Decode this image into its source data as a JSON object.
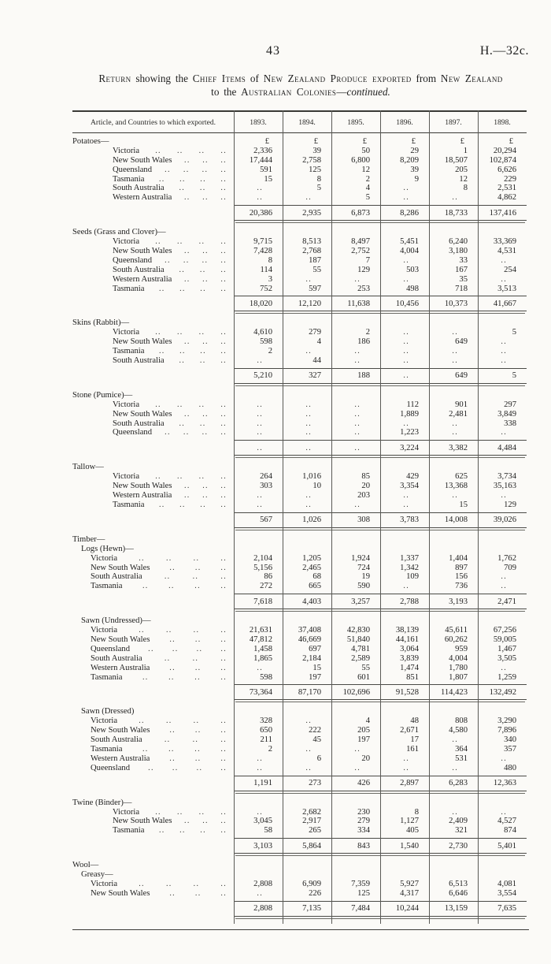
{
  "page": {
    "page_number": "43",
    "doc_ref": "H.—32c.",
    "title_line1": [
      {
        "text": "Return",
        "style": "sc"
      },
      {
        "text": " showing the ",
        "style": "plain"
      },
      {
        "text": "Chief Items",
        "style": "sc"
      },
      {
        "text": " of ",
        "style": "plain"
      },
      {
        "text": "New Zealand Produce exported",
        "style": "sc"
      },
      {
        "text": " from ",
        "style": "plain"
      },
      {
        "text": "New Zealand",
        "style": "sc"
      }
    ],
    "title_line2": [
      {
        "text": "to the ",
        "style": "plain"
      },
      {
        "text": "Australian Colonies",
        "style": "sc"
      },
      {
        "text": "—",
        "style": "plain"
      },
      {
        "text": "continued.",
        "style": "italic"
      }
    ]
  },
  "table": {
    "header_label": "Article, and Countries to which exported.",
    "years": [
      "1893.",
      "1894.",
      "1895.",
      "1896.",
      "1897.",
      "1898."
    ],
    "currency_symbol": "£",
    "empty_marker": "..",
    "sections": [
      {
        "title": "Potatoes—",
        "show_currency": true,
        "rows": [
          {
            "label": "Victoria",
            "values": [
              "2,336",
              "39",
              "50",
              "29",
              "1",
              "20,294"
            ]
          },
          {
            "label": "New South Wales",
            "values": [
              "17,444",
              "2,758",
              "6,800",
              "8,209",
              "18,507",
              "102,874"
            ]
          },
          {
            "label": "Queensland",
            "values": [
              "591",
              "125",
              "12",
              "39",
              "205",
              "6,626"
            ]
          },
          {
            "label": "Tasmania",
            "values": [
              "15",
              "8",
              "2",
              "9",
              "12",
              "229"
            ]
          },
          {
            "label": "South Australia",
            "values": [
              "..",
              "5",
              "4",
              "..",
              "8",
              "2,531"
            ]
          },
          {
            "label": "Western Australia",
            "values": [
              "..",
              "..",
              "5",
              "..",
              "..",
              "4,862"
            ]
          }
        ],
        "total": [
          "20,386",
          "2,935",
          "6,873",
          "8,286",
          "18,733",
          "137,416"
        ]
      },
      {
        "title": "Seeds (Grass and Clover)—",
        "rows": [
          {
            "label": "Victoria",
            "values": [
              "9,715",
              "8,513",
              "8,497",
              "5,451",
              "6,240",
              "33,369"
            ]
          },
          {
            "label": "New South Wales",
            "values": [
              "7,428",
              "2,768",
              "2,752",
              "4,004",
              "3,180",
              "4,531"
            ]
          },
          {
            "label": "Queensland",
            "values": [
              "8",
              "187",
              "7",
              "..",
              "33",
              ".."
            ]
          },
          {
            "label": "South Australia",
            "values": [
              "114",
              "55",
              "129",
              "503",
              "167",
              "254"
            ]
          },
          {
            "label": "Western Australia",
            "values": [
              "3",
              "..",
              "..",
              "..",
              "35",
              ".."
            ]
          },
          {
            "label": "Tasmania",
            "values": [
              "752",
              "597",
              "253",
              "498",
              "718",
              "3,513"
            ]
          }
        ],
        "total": [
          "18,020",
          "12,120",
          "11,638",
          "10,456",
          "10,373",
          "41,667"
        ]
      },
      {
        "title": "Skins (Rabbit)—",
        "rows": [
          {
            "label": "Victoria",
            "values": [
              "4,610",
              "279",
              "2",
              "..",
              "..",
              "5"
            ]
          },
          {
            "label": "New South Wales",
            "values": [
              "598",
              "4",
              "186",
              "..",
              "649",
              ".."
            ]
          },
          {
            "label": "Tasmania",
            "values": [
              "2",
              "..",
              "..",
              "..",
              "..",
              ".."
            ]
          },
          {
            "label": "South Australia",
            "values": [
              "..",
              "44",
              "..",
              "..",
              "..",
              ".."
            ]
          }
        ],
        "total": [
          "5,210",
          "327",
          "188",
          "..",
          "649",
          "5"
        ]
      },
      {
        "title": "Stone (Pumice)—",
        "rows": [
          {
            "label": "Victoria",
            "values": [
              "..",
              "..",
              "..",
              "112",
              "901",
              "297"
            ]
          },
          {
            "label": "New South Wales",
            "values": [
              "..",
              "..",
              "..",
              "1,889",
              "2,481",
              "3,849"
            ]
          },
          {
            "label": "South Australia",
            "values": [
              "..",
              "..",
              "..",
              "..",
              "..",
              "338"
            ]
          },
          {
            "label": "Queensland",
            "values": [
              "..",
              "..",
              "..",
              "1,223",
              "..",
              ".."
            ]
          }
        ],
        "total": [
          "..",
          "..",
          "..",
          "3,224",
          "3,382",
          "4,484"
        ]
      },
      {
        "title": "Tallow—",
        "rows": [
          {
            "label": "Victoria",
            "values": [
              "264",
              "1,016",
              "85",
              "429",
              "625",
              "3,734"
            ]
          },
          {
            "label": "New South Wales",
            "values": [
              "303",
              "10",
              "20",
              "3,354",
              "13,368",
              "35,163"
            ]
          },
          {
            "label": "Western Australia",
            "values": [
              "..",
              "..",
              "203",
              "..",
              "..",
              ".."
            ]
          },
          {
            "label": "Tasmania",
            "values": [
              "..",
              "..",
              "..",
              "..",
              "15",
              "129"
            ]
          }
        ],
        "total": [
          "567",
          "1,026",
          "308",
          "3,783",
          "14,008",
          "39,026"
        ]
      },
      {
        "group": "Timber—",
        "title": "Logs (Hewn)—",
        "subsection": true,
        "rows": [
          {
            "label": "Victoria",
            "values": [
              "2,104",
              "1,205",
              "1,924",
              "1,337",
              "1,404",
              "1,762"
            ]
          },
          {
            "label": "New South Wales",
            "values": [
              "5,156",
              "2,465",
              "724",
              "1,342",
              "897",
              "709"
            ]
          },
          {
            "label": "South Australia",
            "values": [
              "86",
              "68",
              "19",
              "109",
              "156",
              ".."
            ]
          },
          {
            "label": "Tasmania",
            "values": [
              "272",
              "665",
              "590",
              "..",
              "736",
              ".."
            ]
          }
        ],
        "total": [
          "7,618",
          "4,403",
          "3,257",
          "2,788",
          "3,193",
          "2,471"
        ]
      },
      {
        "title": "Sawn (Undressed)—",
        "subsection": true,
        "rows": [
          {
            "label": "Victoria",
            "values": [
              "21,631",
              "37,408",
              "42,830",
              "38,139",
              "45,611",
              "67,256"
            ]
          },
          {
            "label": "New South Wales",
            "values": [
              "47,812",
              "46,669",
              "51,840",
              "44,161",
              "60,262",
              "59,005"
            ]
          },
          {
            "label": "Queensland",
            "values": [
              "1,458",
              "697",
              "4,781",
              "3,064",
              "959",
              "1,467"
            ]
          },
          {
            "label": "South Australia",
            "values": [
              "1,865",
              "2,184",
              "2,589",
              "3,839",
              "4,004",
              "3,505"
            ]
          },
          {
            "label": "Western Australia",
            "values": [
              "..",
              "15",
              "55",
              "1,474",
              "1,780",
              ".."
            ]
          },
          {
            "label": "Tasmania",
            "values": [
              "598",
              "197",
              "601",
              "851",
              "1,807",
              "1,259"
            ]
          }
        ],
        "total": [
          "73,364",
          "87,170",
          "102,696",
          "91,528",
          "114,423",
          "132,492"
        ]
      },
      {
        "title": "Sawn (Dressed)",
        "subsection": true,
        "rows": [
          {
            "label": "Victoria",
            "values": [
              "328",
              "..",
              "4",
              "48",
              "808",
              "3,290"
            ]
          },
          {
            "label": "New South Wales",
            "values": [
              "650",
              "222",
              "205",
              "2,671",
              "4,580",
              "7,896"
            ]
          },
          {
            "label": "South Australia",
            "values": [
              "211",
              "45",
              "197",
              "17",
              "..",
              "340"
            ]
          },
          {
            "label": "Tasmania",
            "values": [
              "2",
              "..",
              "..",
              "161",
              "364",
              "357"
            ]
          },
          {
            "label": "Western Australia",
            "values": [
              "..",
              "6",
              "20",
              "..",
              "531",
              ".."
            ]
          },
          {
            "label": "Queensland",
            "values": [
              "..",
              "..",
              "..",
              "..",
              "..",
              "480"
            ]
          }
        ],
        "total": [
          "1,191",
          "273",
          "426",
          "2,897",
          "6,283",
          "12,363"
        ]
      },
      {
        "title": "Twine (Binder)—",
        "rows": [
          {
            "label": "Victoria",
            "values": [
              "..",
              "2,682",
              "230",
              "8",
              "..",
              ".."
            ]
          },
          {
            "label": "New South Wales",
            "values": [
              "3,045",
              "2,917",
              "279",
              "1,127",
              "2,409",
              "4,527"
            ]
          },
          {
            "label": "Tasmania",
            "values": [
              "58",
              "265",
              "334",
              "405",
              "321",
              "874"
            ]
          }
        ],
        "total": [
          "3,103",
          "5,864",
          "843",
          "1,540",
          "2,730",
          "5,401"
        ]
      },
      {
        "group": "Wool—",
        "title": "Greasy—",
        "subsection": true,
        "rows": [
          {
            "label": "Victoria",
            "values": [
              "2,808",
              "6,909",
              "7,359",
              "5,927",
              "6,513",
              "4,081"
            ]
          },
          {
            "label": "New South Wales",
            "values": [
              "..",
              "226",
              "125",
              "4,317",
              "6,646",
              "3,554"
            ]
          }
        ],
        "total": [
          "2,808",
          "7,135",
          "7,484",
          "10,244",
          "13,159",
          "7,635"
        ]
      }
    ]
  }
}
